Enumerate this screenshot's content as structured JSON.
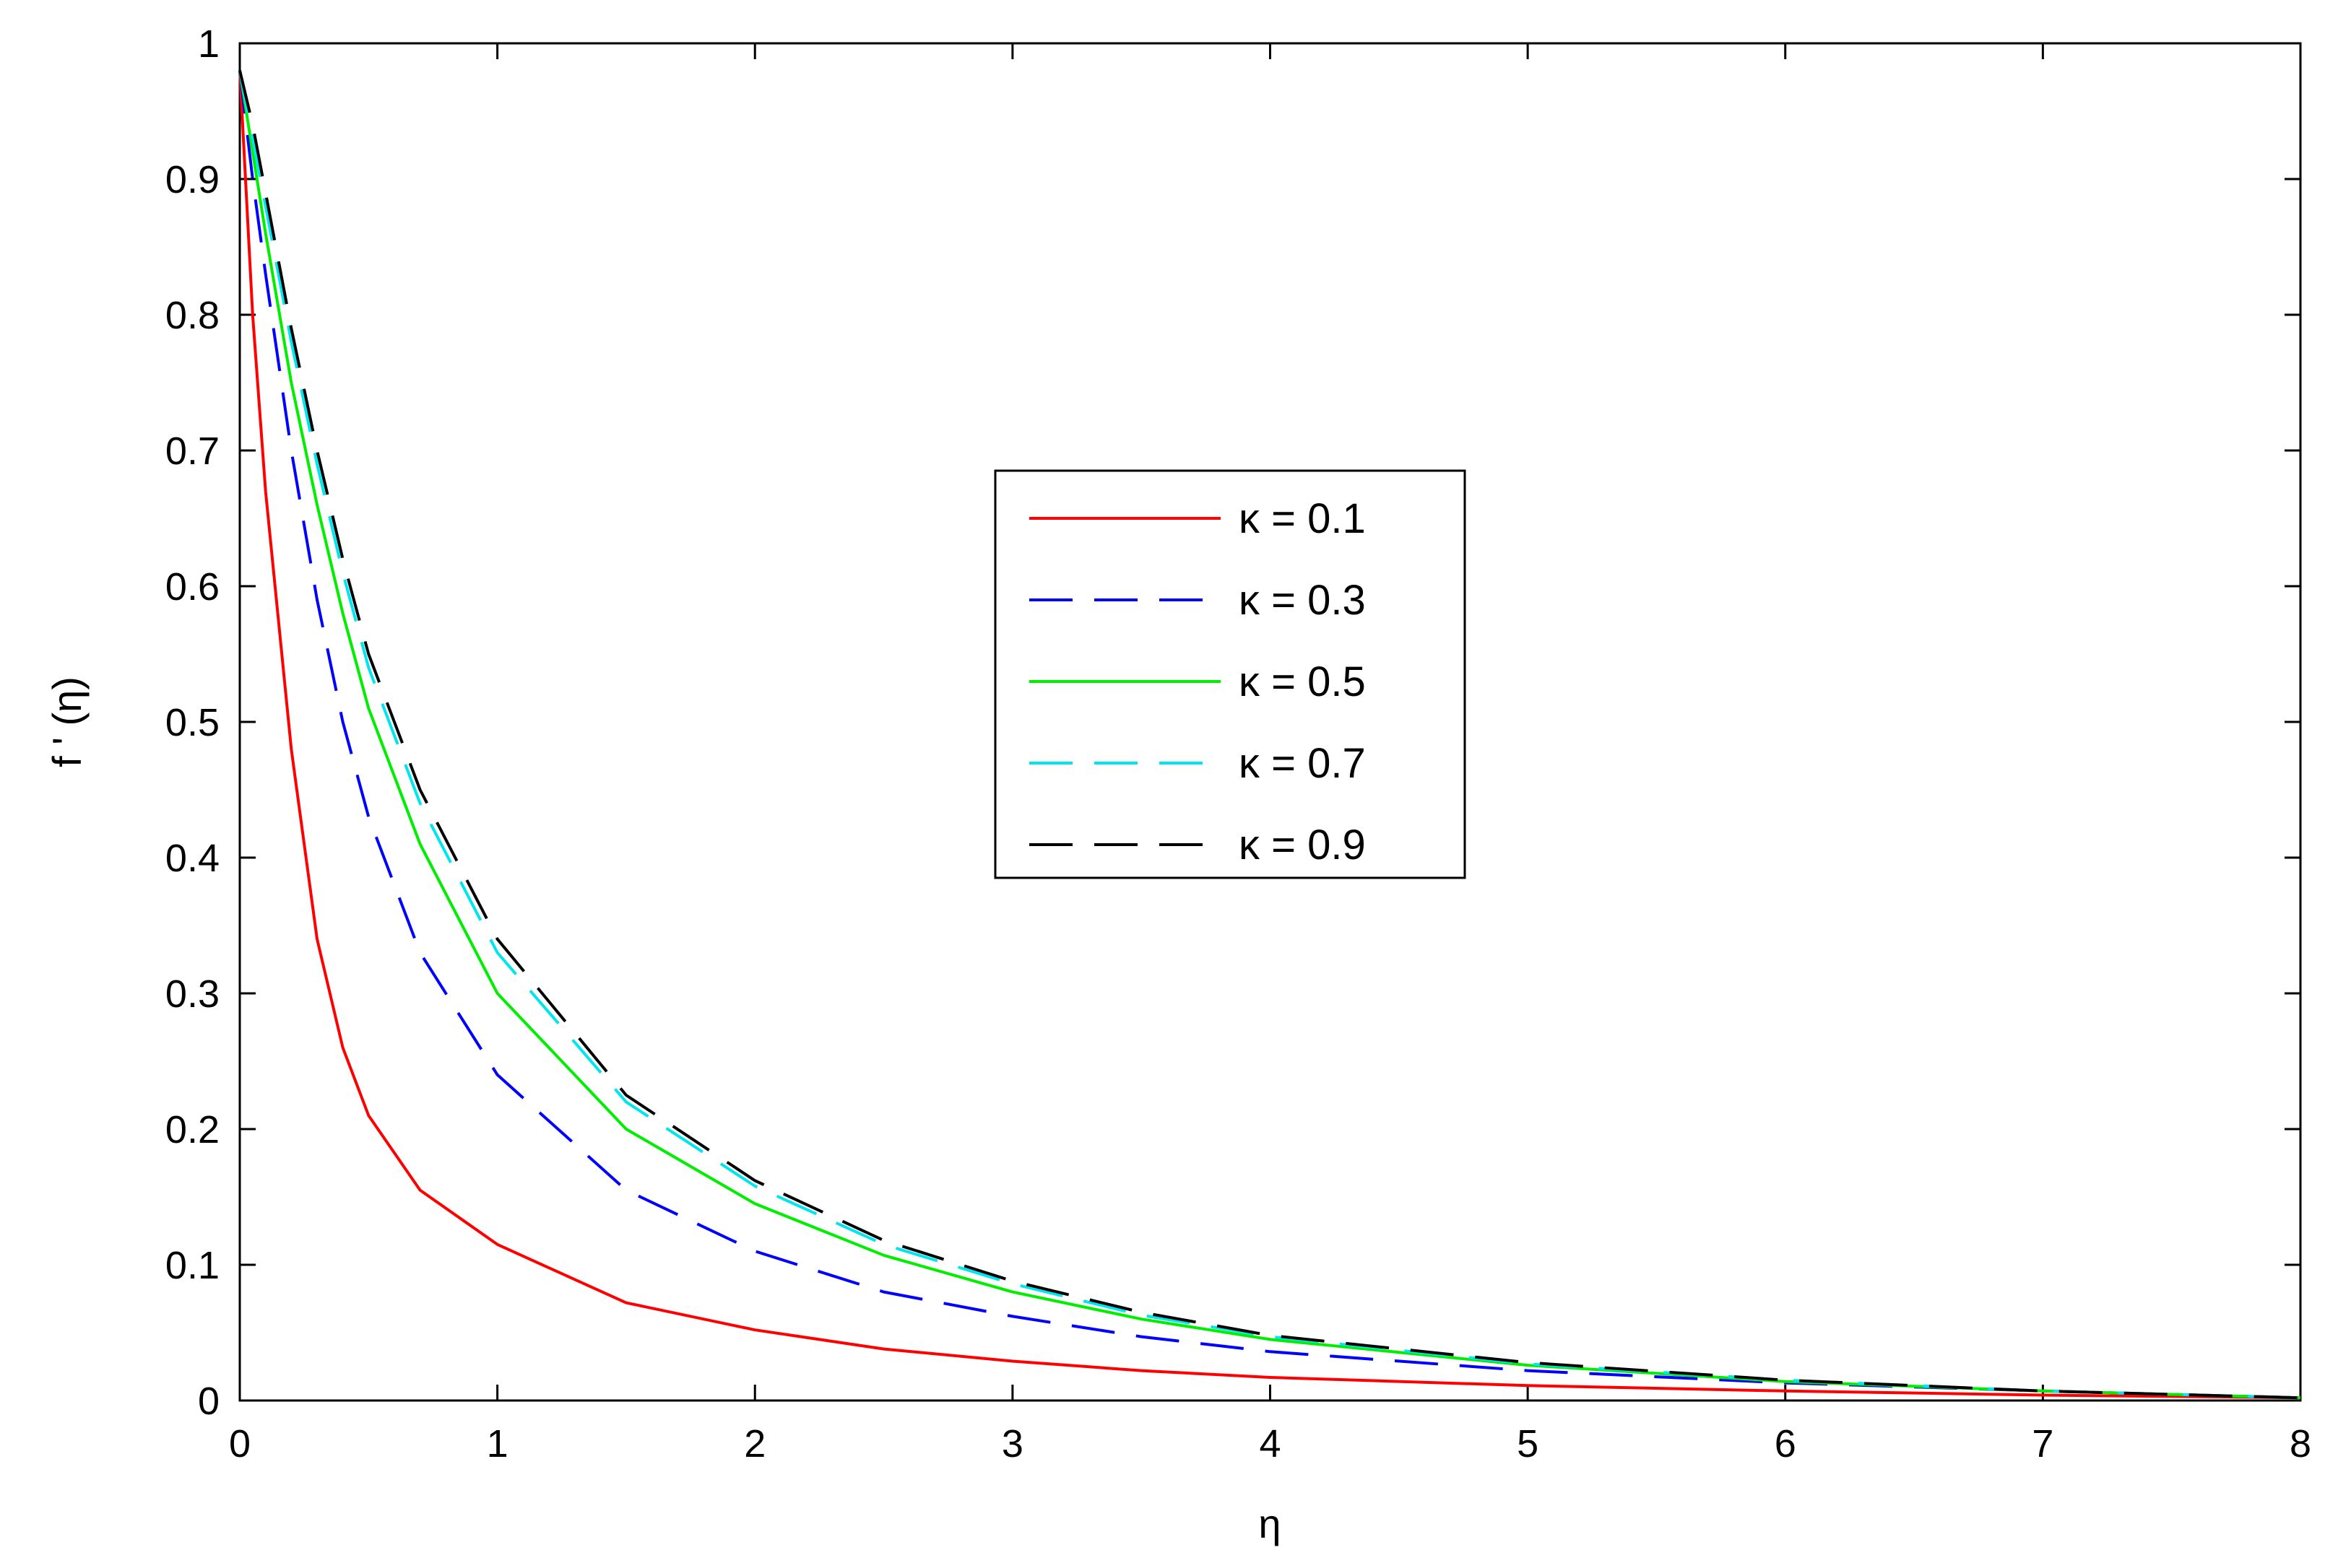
{
  "chart_data": {
    "type": "line",
    "title": "",
    "xlabel": "η",
    "ylabel": "f ' (η)",
    "xlim": [
      0,
      8
    ],
    "ylim": [
      0,
      1
    ],
    "x_ticks": [
      "0",
      "1",
      "2",
      "3",
      "4",
      "5",
      "6",
      "7",
      "8"
    ],
    "y_ticks": [
      "0",
      "0.1",
      "0.2",
      "0.3",
      "0.4",
      "0.5",
      "0.6",
      "0.7",
      "0.8",
      "0.9",
      "1"
    ],
    "grid": false,
    "legend_position": "center",
    "x": [
      0,
      0.05,
      0.1,
      0.2,
      0.3,
      0.4,
      0.5,
      0.7,
      1,
      1.5,
      2,
      2.5,
      3,
      3.5,
      4,
      5,
      6,
      7,
      8
    ],
    "series": [
      {
        "name": "κ = 0.1",
        "color": "#ff0000",
        "dash": "solid",
        "values": [
          0.98,
          0.8,
          0.67,
          0.48,
          0.34,
          0.26,
          0.21,
          0.155,
          0.115,
          0.072,
          0.052,
          0.038,
          0.029,
          0.022,
          0.017,
          0.011,
          0.007,
          0.004,
          0.002
        ]
      },
      {
        "name": "κ = 0.3",
        "color": "#0000ff",
        "dash": "dash",
        "values": [
          0.98,
          0.9,
          0.83,
          0.7,
          0.59,
          0.5,
          0.43,
          0.33,
          0.24,
          0.155,
          0.11,
          0.08,
          0.062,
          0.047,
          0.036,
          0.022,
          0.013,
          0.007,
          0.002
        ]
      },
      {
        "name": "κ = 0.5",
        "color": "#00ee00",
        "dash": "solid",
        "values": [
          0.98,
          0.92,
          0.86,
          0.75,
          0.66,
          0.58,
          0.51,
          0.41,
          0.3,
          0.2,
          0.145,
          0.107,
          0.08,
          0.06,
          0.045,
          0.026,
          0.014,
          0.007,
          0.002
        ]
      },
      {
        "name": "κ = 0.7",
        "color": "#00e5ee",
        "dash": "dash",
        "values": [
          0.98,
          0.93,
          0.88,
          0.78,
          0.69,
          0.61,
          0.54,
          0.44,
          0.33,
          0.22,
          0.158,
          0.115,
          0.086,
          0.063,
          0.047,
          0.027,
          0.015,
          0.007,
          0.002
        ]
      },
      {
        "name": "κ = 0.9",
        "color": "#000000",
        "dash": "dash",
        "values": [
          0.98,
          0.94,
          0.89,
          0.79,
          0.7,
          0.62,
          0.55,
          0.45,
          0.34,
          0.225,
          0.162,
          0.118,
          0.088,
          0.065,
          0.048,
          0.028,
          0.015,
          0.007,
          0.002
        ]
      }
    ]
  }
}
